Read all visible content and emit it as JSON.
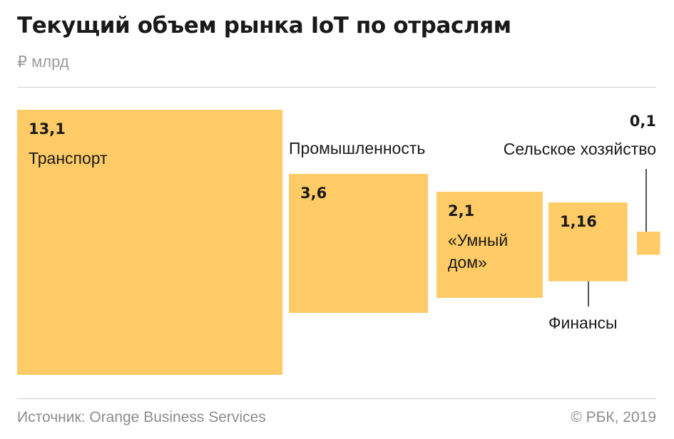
{
  "header": {
    "title": "Текущий объем рынка IoT по отраслям",
    "unit": "₽ млрд"
  },
  "footer": {
    "source": "Источник: Orange Business Services",
    "copyright": "© РБК, 2019"
  },
  "colors": {
    "fill": "#fecb66",
    "text": "#1a1a1a",
    "muted": "#9b9b9b",
    "rule": "#cfcfcf"
  },
  "chart_data": {
    "type": "treemap",
    "title": "Текущий объем рынка IoT по отраслям",
    "unit": "₽ млрд",
    "categories": [
      "Транспорт",
      "Промышленность",
      "«Умный дом»",
      "Финансы",
      "Сельское хозяйство"
    ],
    "values": [
      13.1,
      3.6,
      2.1,
      1.16,
      0.1
    ],
    "value_labels": [
      "13,1",
      "3,6",
      "2,1",
      "1,16",
      "0,1"
    ],
    "category_label_lines": [
      [
        "Транспорт"
      ],
      [
        "Промышленность"
      ],
      [
        "«Умный",
        "дом»"
      ],
      [
        "Финансы"
      ],
      [
        "Сельское хозяйство"
      ]
    ],
    "encoding": "square area proportional to value"
  }
}
